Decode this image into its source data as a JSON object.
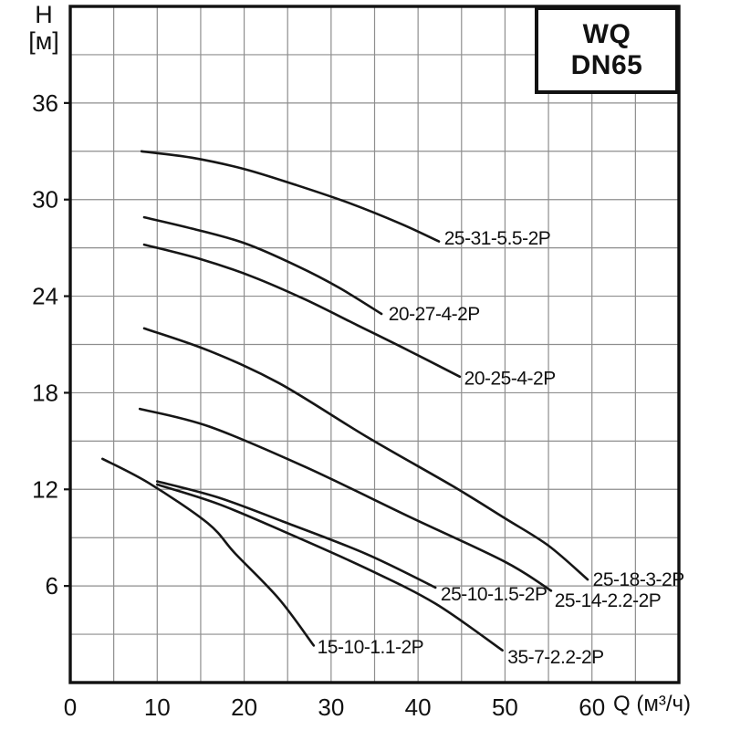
{
  "page": {
    "background": "#ffffff"
  },
  "legend": {
    "line1": "WQ",
    "line2": "DN65"
  },
  "axes": {
    "y_title_line1": "H",
    "y_title_line2": "[м]",
    "x_title": "Q (м³/ч)",
    "x_ticks": [
      0,
      10,
      20,
      30,
      40,
      50,
      60
    ],
    "y_ticks": [
      36,
      30,
      24,
      18,
      12,
      6
    ],
    "x_range": [
      0,
      70
    ],
    "y_range": [
      0,
      42
    ],
    "x_grid_step": 5,
    "y_grid_step": 3
  },
  "colors": {
    "curve": "#161616",
    "grid": "#8e8e8e",
    "axis": "#111111",
    "text": "#111111",
    "background": "#ffffff"
  },
  "chart_data": {
    "type": "line",
    "title": "WQ DN65",
    "xlabel": "Q (м³/ч)",
    "ylabel": "H [м]",
    "xlim": [
      0,
      70
    ],
    "ylim": [
      0,
      42
    ],
    "grid": true,
    "legend_position": "top-right",
    "series": [
      {
        "name": "25-31-5.5-2P",
        "points": [
          [
            8.2,
            33.0
          ],
          [
            14,
            32.6
          ],
          [
            20,
            31.9
          ],
          [
            26,
            30.9
          ],
          [
            32,
            29.8
          ],
          [
            38,
            28.5
          ],
          [
            42.4,
            27.4
          ]
        ],
        "label_q": 43.0,
        "label_h": 27.2
      },
      {
        "name": "20-27-4-2P",
        "points": [
          [
            8.5,
            28.9
          ],
          [
            14,
            28.2
          ],
          [
            20,
            27.3
          ],
          [
            26,
            25.9
          ],
          [
            31,
            24.5
          ],
          [
            35.8,
            22.9
          ]
        ],
        "label_q": 36.6,
        "label_h": 22.5
      },
      {
        "name": "20-25-4-2P",
        "points": [
          [
            8.5,
            27.2
          ],
          [
            15,
            26.3
          ],
          [
            21,
            25.2
          ],
          [
            27,
            23.8
          ],
          [
            33,
            22.2
          ],
          [
            39,
            20.6
          ],
          [
            44.8,
            19.0
          ]
        ],
        "label_q": 45.3,
        "label_h": 18.5
      },
      {
        "name": "25-18-3-2P",
        "points": [
          [
            8.5,
            22.0
          ],
          [
            16,
            20.6
          ],
          [
            24,
            18.6
          ],
          [
            34,
            15.3
          ],
          [
            44,
            12.2
          ],
          [
            50,
            10.2
          ],
          [
            55,
            8.5
          ],
          [
            59.5,
            6.4
          ]
        ],
        "label_q": 60.1,
        "label_h": 6.0
      },
      {
        "name": "25-14-2.2-2P",
        "points": [
          [
            8.0,
            17.0
          ],
          [
            16,
            15.9
          ],
          [
            27,
            13.4
          ],
          [
            39,
            10.3
          ],
          [
            50,
            7.5
          ],
          [
            55.3,
            5.7
          ]
        ],
        "label_q": 55.7,
        "label_h": 4.7
      },
      {
        "name": "25-10-1.5-2P",
        "points": [
          [
            10,
            12.5
          ],
          [
            17,
            11.5
          ],
          [
            24.5,
            10.0
          ],
          [
            34,
            8.0
          ],
          [
            42,
            5.9
          ]
        ],
        "label_q": 42.6,
        "label_h": 5.1
      },
      {
        "name": "15-10-1.1-2P",
        "points": [
          [
            3.7,
            13.9
          ],
          [
            9,
            12.4
          ],
          [
            15.8,
            9.9
          ],
          [
            19,
            8.0
          ],
          [
            24,
            5.2
          ],
          [
            28,
            2.3
          ]
        ],
        "label_q": 28.4,
        "label_h": 1.8
      },
      {
        "name": "35-7-2.2-2P",
        "points": [
          [
            10,
            12.3
          ],
          [
            17,
            11.1
          ],
          [
            24.5,
            9.4
          ],
          [
            34,
            7.1
          ],
          [
            42,
            4.9
          ],
          [
            49.7,
            2.0
          ]
        ],
        "label_q": 50.3,
        "label_h": 1.2
      }
    ]
  }
}
